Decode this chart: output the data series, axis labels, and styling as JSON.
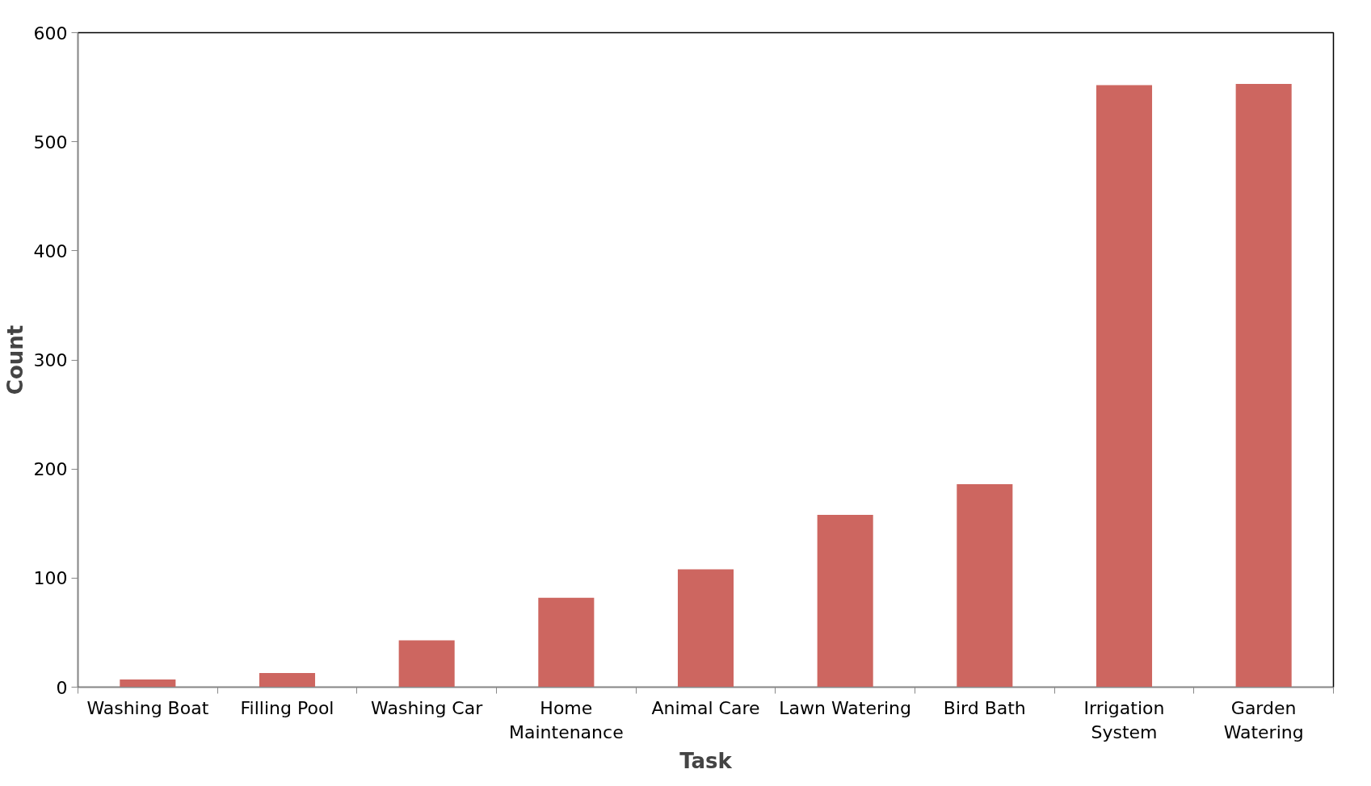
{
  "chart_data": {
    "type": "bar",
    "xlabel": "Task",
    "ylabel": "Count",
    "categories": [
      "Washing Boat",
      "Filling Pool",
      "Washing Car",
      "Home Maintenance",
      "Animal Care",
      "Lawn Watering",
      "Bird Bath",
      "Irrigation System",
      "Garden Watering"
    ],
    "values": [
      7,
      13,
      43,
      82,
      108,
      158,
      186,
      552,
      553
    ],
    "color": "#cd6660",
    "ylim": [
      0,
      600
    ],
    "yticks": [
      0,
      100,
      200,
      300,
      400,
      500,
      600
    ],
    "grid": false
  }
}
